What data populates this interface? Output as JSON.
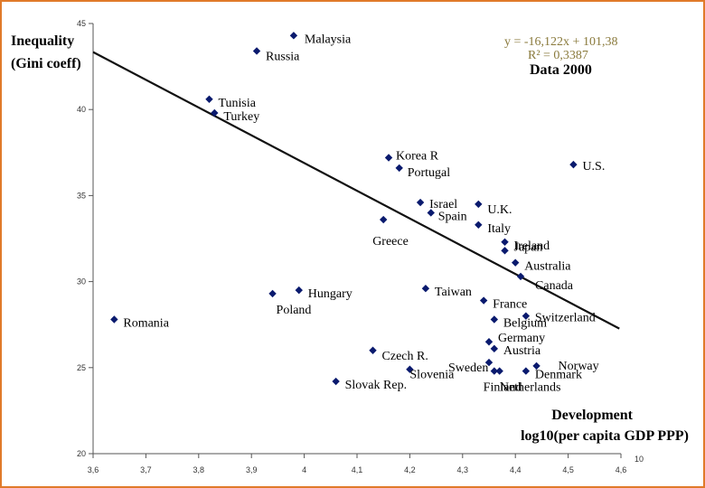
{
  "chart_data": {
    "type": "scatter",
    "title": "",
    "ylabel_lines": [
      "Inequality",
      "(Gini coeff)"
    ],
    "xlabel_lines": [
      "Development",
      "log10(per capita GDP PPP)"
    ],
    "data_note": "Data 2000",
    "equation": "y = -16,122x + 101,38",
    "r_squared": "R² = 0,3387",
    "trendline": {
      "slope": -16.122,
      "intercept": 101.38
    },
    "xlim": [
      3.6,
      4.6
    ],
    "ylim": [
      20,
      45
    ],
    "x_ticks": [
      3.6,
      3.7,
      3.8,
      3.9,
      4.0,
      4.1,
      4.2,
      4.3,
      4.4,
      4.5,
      4.6
    ],
    "x_tick_labels": [
      "3,6",
      "3,7",
      "3,8",
      "3,9",
      "4",
      "4,1",
      "4,2",
      "4,3",
      "4,4",
      "4,5",
      "4,6"
    ],
    "y_ticks": [
      20,
      25,
      30,
      35,
      40,
      45
    ],
    "y_tick_labels": [
      "20",
      "25",
      "30",
      "35",
      "40",
      "45"
    ],
    "x_axis_end_label": "10",
    "marker_color": "#0a1a6e",
    "points": [
      {
        "name": "Malaysia",
        "x": 3.98,
        "y": 44.3
      },
      {
        "name": "Russia",
        "x": 3.91,
        "y": 43.4
      },
      {
        "name": "Tunisia",
        "x": 3.82,
        "y": 40.6
      },
      {
        "name": "Turkey",
        "x": 3.83,
        "y": 39.8
      },
      {
        "name": "Korea R",
        "x": 4.16,
        "y": 37.2
      },
      {
        "name": "Portugal",
        "x": 4.18,
        "y": 36.6
      },
      {
        "name": "U.S.",
        "x": 4.51,
        "y": 36.8
      },
      {
        "name": "Israel",
        "x": 4.22,
        "y": 34.6
      },
      {
        "name": "Spain",
        "x": 4.24,
        "y": 34.0
      },
      {
        "name": "U.K.",
        "x": 4.33,
        "y": 34.5
      },
      {
        "name": "Greece",
        "x": 4.15,
        "y": 33.6
      },
      {
        "name": "Italy",
        "x": 4.33,
        "y": 33.3
      },
      {
        "name": "Ireland",
        "x": 4.38,
        "y": 32.3
      },
      {
        "name": "Japan",
        "x": 4.38,
        "y": 31.8
      },
      {
        "name": "Australia",
        "x": 4.4,
        "y": 31.1
      },
      {
        "name": "Canada",
        "x": 4.41,
        "y": 30.3
      },
      {
        "name": "Hungary",
        "x": 3.99,
        "y": 29.5
      },
      {
        "name": "Poland",
        "x": 3.94,
        "y": 29.3
      },
      {
        "name": "Taiwan",
        "x": 4.23,
        "y": 29.6
      },
      {
        "name": "France",
        "x": 4.34,
        "y": 28.9
      },
      {
        "name": "Switzerland",
        "x": 4.42,
        "y": 28.0
      },
      {
        "name": "Belgium",
        "x": 4.36,
        "y": 27.8
      },
      {
        "name": "Romania",
        "x": 3.64,
        "y": 27.8
      },
      {
        "name": "Germany",
        "x": 4.35,
        "y": 26.5
      },
      {
        "name": "Austria",
        "x": 4.36,
        "y": 26.1
      },
      {
        "name": "Czech R.",
        "x": 4.13,
        "y": 26.0
      },
      {
        "name": "Sweden",
        "x": 4.35,
        "y": 25.3
      },
      {
        "name": "Slovenia",
        "x": 4.2,
        "y": 24.9
      },
      {
        "name": "Norway",
        "x": 4.44,
        "y": 25.1
      },
      {
        "name": "Denmark",
        "x": 4.42,
        "y": 24.8
      },
      {
        "name": "Finland",
        "x": 4.37,
        "y": 24.8
      },
      {
        "name": "Netherlands",
        "x": 4.36,
        "y": 24.8
      },
      {
        "name": "Slovak Rep.",
        "x": 4.06,
        "y": 24.2
      }
    ]
  }
}
